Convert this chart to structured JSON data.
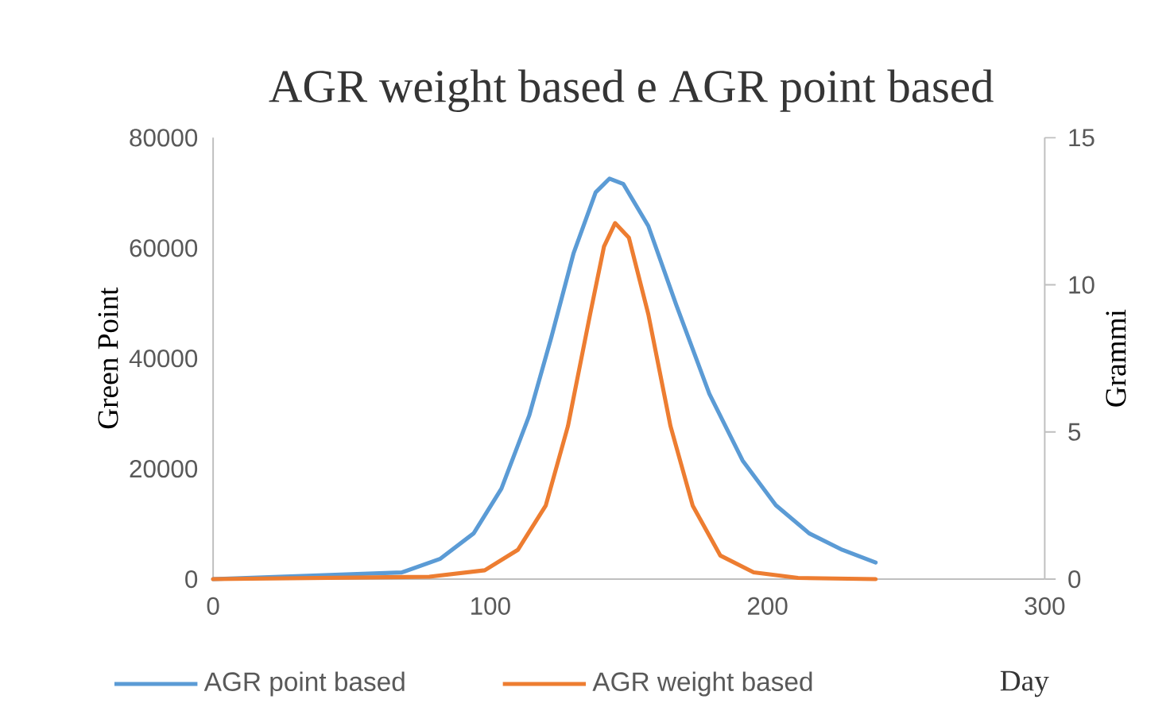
{
  "chart_data": {
    "type": "line",
    "title": "AGR weight based e AGR point based",
    "xlabel": "Day",
    "ylabel": "Green Point",
    "y2label": "Grammi",
    "xlim": [
      0,
      300
    ],
    "xticks": [
      0,
      100,
      200,
      300
    ],
    "ylim": [
      0,
      80000
    ],
    "yticks": [
      0,
      20000,
      40000,
      60000,
      80000
    ],
    "y2lim": [
      0,
      15
    ],
    "y2ticks": [
      0,
      5,
      10,
      15
    ],
    "legend": "bottom",
    "grid": false,
    "marker": "none",
    "series": [
      {
        "name": "AGR point based",
        "color": "#5b9bd5",
        "x": [
          0,
          47,
          68,
          82,
          94,
          104,
          114,
          122,
          130,
          138,
          143,
          148,
          157,
          167,
          179,
          191,
          203,
          215,
          227,
          239
        ],
        "values": [
          0,
          null,
          1200,
          3700,
          8300,
          16400,
          29600,
          43800,
          59000,
          70100,
          72600,
          71600,
          64000,
          49800,
          33600,
          21500,
          13400,
          8300,
          5300,
          3000
        ]
      },
      {
        "name": "AGR weight based",
        "color": "#ed7d31",
        "axis": "y2",
        "x": [
          0,
          78,
          98,
          110,
          120,
          128,
          136,
          141,
          145,
          150,
          157,
          165,
          173,
          183,
          195,
          211,
          239
        ],
        "values": [
          0,
          0.08,
          0.3,
          1,
          2.5,
          5.2,
          9,
          11.3,
          12.1,
          11.6,
          9,
          5.2,
          2.5,
          0.8,
          0.23,
          0.04,
          0
        ]
      }
    ]
  }
}
